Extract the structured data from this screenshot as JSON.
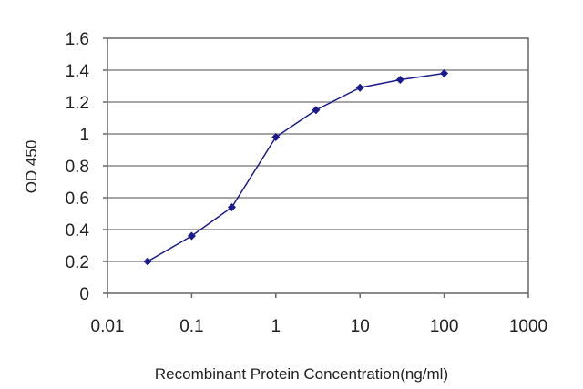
{
  "chart_data": {
    "type": "line",
    "title": "",
    "xlabel": "Recombinant Protein Concentration(ng/ml)",
    "ylabel": "OD 450",
    "x_scale": "log",
    "xlim": [
      0.01,
      1000
    ],
    "ylim": [
      0,
      1.6
    ],
    "x_ticks": [
      "0.01",
      "0.1",
      "1",
      "10",
      "100",
      "1000"
    ],
    "y_ticks": [
      "0",
      "0.2",
      "0.4",
      "0.6",
      "0.8",
      "1",
      "1.2",
      "1.4",
      "1.6"
    ],
    "grid": "horizontal",
    "colors": {
      "series": "#1a1a8c",
      "grid": "#888888",
      "frame": "#666666"
    },
    "series": [
      {
        "x": [
          0.03,
          0.1,
          0.3,
          1,
          3,
          10,
          30,
          100
        ],
        "y": [
          0.2,
          0.36,
          0.54,
          0.98,
          1.15,
          1.29,
          1.34,
          1.38
        ]
      }
    ]
  }
}
